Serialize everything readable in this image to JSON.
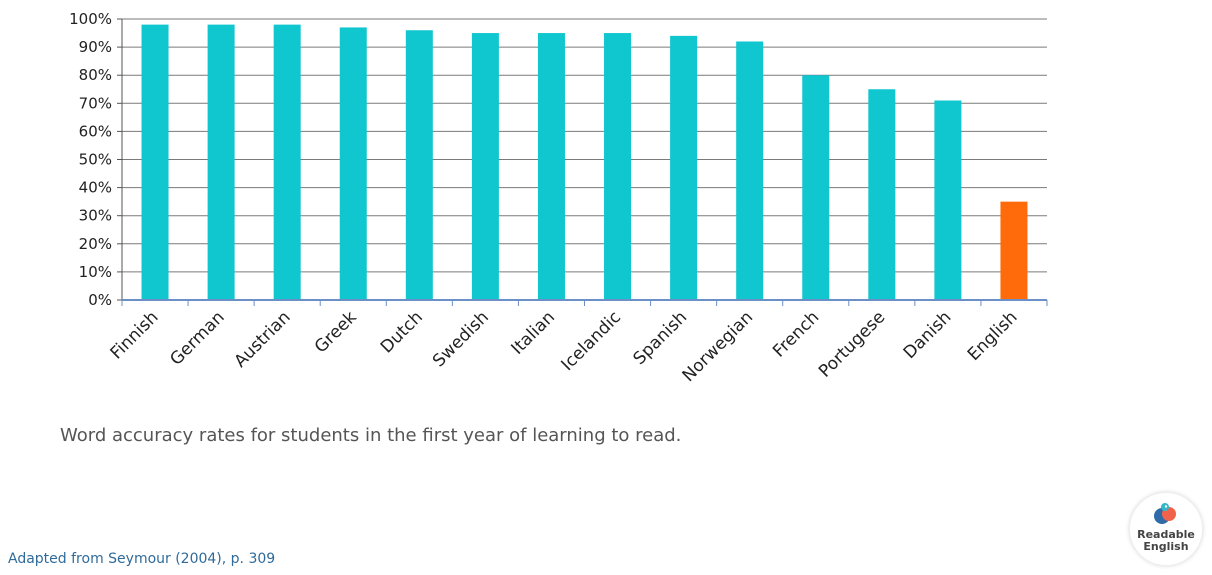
{
  "chart_data": {
    "type": "bar",
    "categories": [
      "Finnish",
      "German",
      "Austrian",
      "Greek",
      "Dutch",
      "Swedish",
      "Italian",
      "Icelandic",
      "Spanish",
      "Norwegian",
      "French",
      "Portugese",
      "Danish",
      "English"
    ],
    "values": [
      98,
      98,
      98,
      97,
      96,
      95,
      95,
      95,
      94,
      92,
      80,
      75,
      71,
      35
    ],
    "ylim": [
      0,
      100
    ],
    "yticks": [
      "0%",
      "10%",
      "20%",
      "30%",
      "40%",
      "50%",
      "60%",
      "70%",
      "80%",
      "90%",
      "100%"
    ],
    "grid": true,
    "legend": "none",
    "colors": {
      "default": "#10c6cf",
      "highlight": "#ff6a0a",
      "highlight_category": "English",
      "grid": "#7a7a7a"
    }
  },
  "caption": "Word accuracy rates for students in the first year of learning to read.",
  "source": "Adapted from Seymour (2004), p. 309",
  "logo": {
    "line1": "Readable",
    "line2": "English",
    "icon": "bird-logo-icon"
  }
}
